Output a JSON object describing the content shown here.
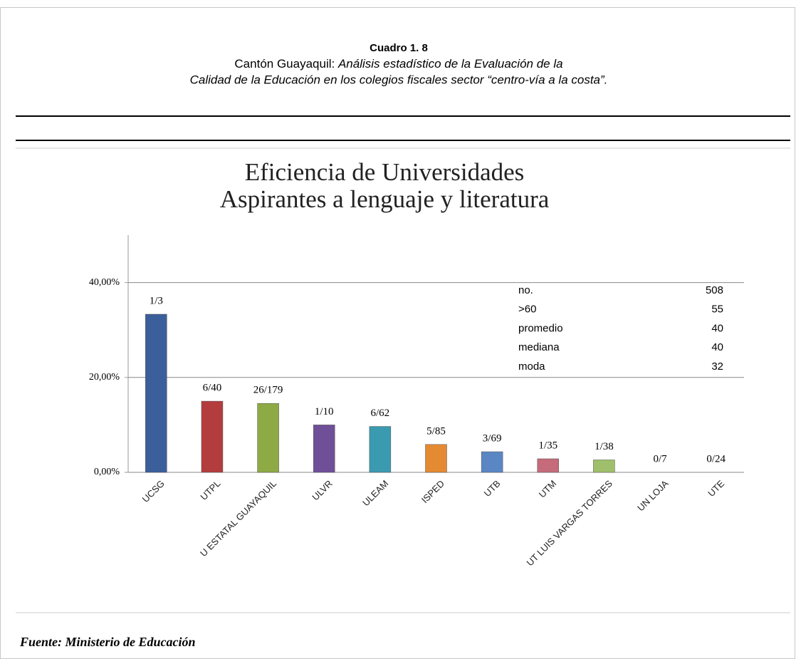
{
  "header": {
    "label": "Cuadro 1. 8",
    "subtitle_prefix": "Cantón Guayaquil: ",
    "subtitle_italic": "Análisis estadístico de la  Evaluación de la",
    "subtitle_line2": "Calidad de la Educación en los colegios fiscales sector “centro-vía a la costa”."
  },
  "chart_data": {
    "type": "bar",
    "title": [
      "Eficiencia de Universidades",
      "Aspirantes a lenguaje y literatura"
    ],
    "categories": [
      "UCSG",
      "UTPL",
      "U ESTATAL GUAYAQUIL",
      "ULVR",
      "ULEAM",
      "ISPED",
      "UTB",
      "UTM",
      "UT LUIS VARGAS TORRES",
      "UN LOJA",
      "UTE"
    ],
    "values": [
      33.33,
      15,
      14.53,
      10,
      9.68,
      5.88,
      4.35,
      2.86,
      2.63,
      0,
      0
    ],
    "value_labels": [
      "1/3",
      "6/40",
      "26/179",
      "1/10",
      "6/62",
      "5/85",
      "3/69",
      "1/35",
      "1/38",
      "0/7",
      "0/24"
    ],
    "colors": [
      "#3b5f9a",
      "#b33c3c",
      "#8eaa45",
      "#6f4f98",
      "#3a9ab0",
      "#e48a32",
      "#5a86c4",
      "#c56b7a",
      "#9fbf6a",
      "#999999",
      "#999999"
    ],
    "ylim": [
      0,
      50
    ],
    "yticks": [
      {
        "value": 0,
        "label": "0,00%"
      },
      {
        "value": 20,
        "label": "20,00%"
      },
      {
        "value": 40,
        "label": "40,00%"
      }
    ],
    "grid": true,
    "stats": [
      {
        "label": "no.",
        "value": 508
      },
      {
        "label": ">60",
        "value": 55
      },
      {
        "label": "promedio",
        "value": 40
      },
      {
        "label": "mediana",
        "value": 40
      },
      {
        "label": "moda",
        "value": 32
      }
    ]
  },
  "footer": {
    "source": "Fuente: Ministerio de Educación"
  }
}
